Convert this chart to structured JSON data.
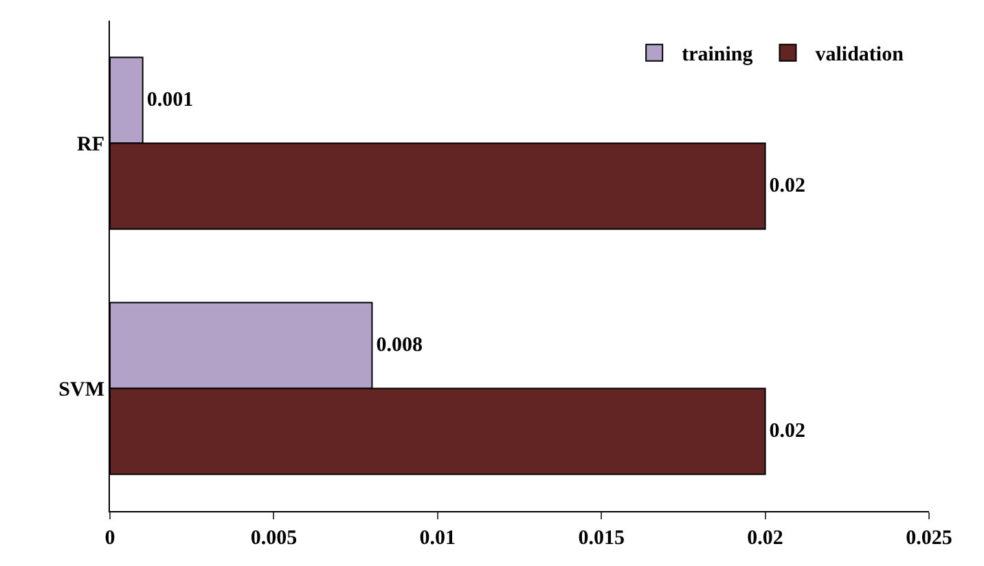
{
  "chart_data": {
    "type": "bar",
    "orientation": "horizontal",
    "categories": [
      "RF",
      "SVM"
    ],
    "series": [
      {
        "name": "training",
        "color": "#b3a2c7",
        "values": [
          0.001,
          0.008
        ]
      },
      {
        "name": "validation",
        "color": "#632523",
        "values": [
          0.02,
          0.02
        ]
      }
    ],
    "xlim": [
      0,
      0.025
    ],
    "xticks": [
      0,
      0.005,
      0.01,
      0.015,
      0.02,
      0.025
    ],
    "data_labels": true,
    "grid": false,
    "legend": "top right"
  }
}
